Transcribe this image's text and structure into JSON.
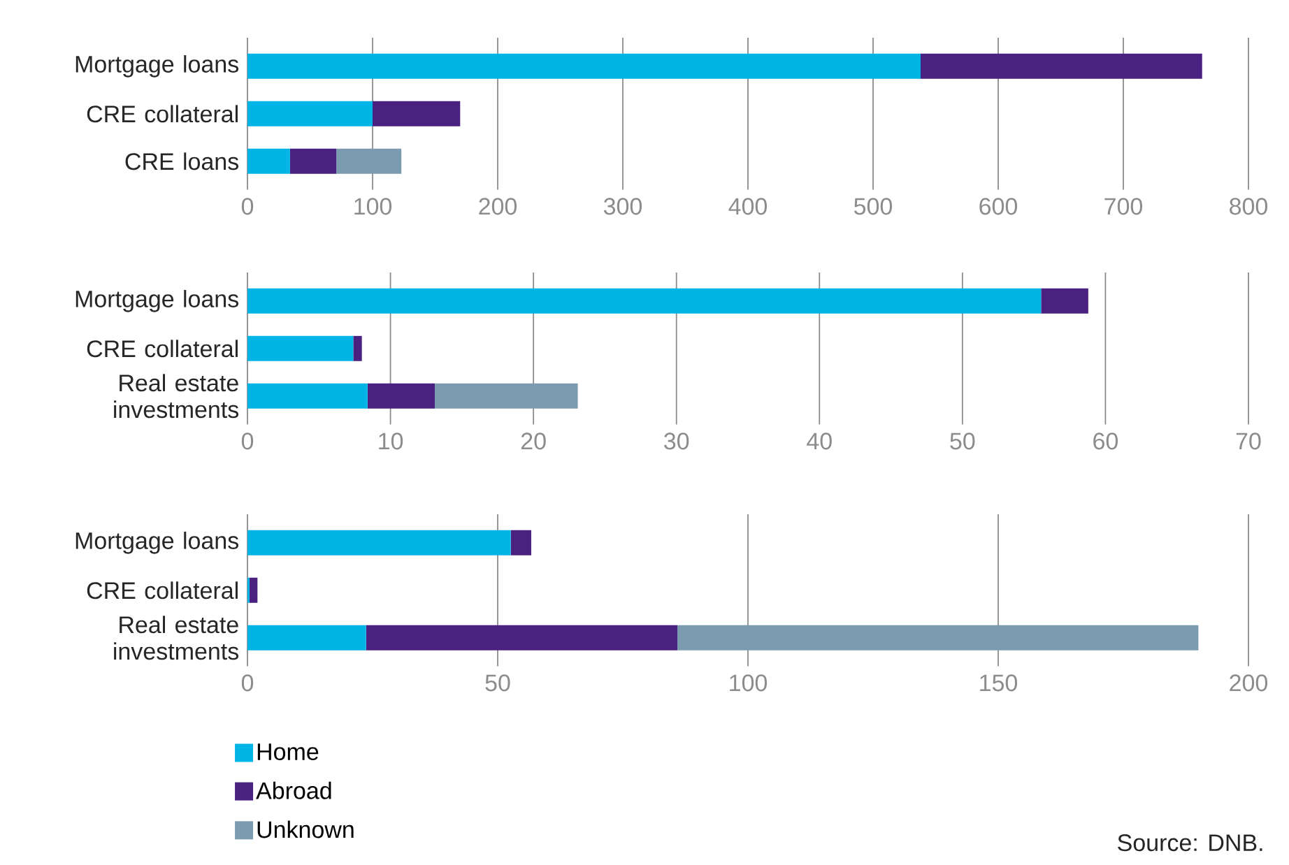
{
  "chart_data": [
    {
      "type": "bar",
      "orientation": "horizontal",
      "stacked": true,
      "grid": "x",
      "categories": [
        "Mortgage loans",
        "CRE collateral",
        "CRE loans"
      ],
      "xlim": [
        0,
        800
      ],
      "xticks": [
        0,
        100,
        200,
        300,
        400,
        500,
        600,
        700,
        800
      ],
      "series": [
        {
          "color": "#00b5e5",
          "values": [
            538,
            100,
            34
          ]
        },
        {
          "color": "#4a2180",
          "values": [
            225,
            70,
            37
          ]
        },
        {
          "color": "#7b9bb0",
          "values": [
            null,
            null,
            52
          ]
        }
      ]
    },
    {
      "type": "bar",
      "orientation": "horizontal",
      "stacked": true,
      "grid": "x",
      "categories": [
        "Mortgage loans",
        "CRE collateral",
        "Real estate investments"
      ],
      "xlim": [
        0,
        70
      ],
      "xticks": [
        0,
        10,
        20,
        30,
        40,
        50,
        60,
        70
      ],
      "series": [
        {
          "color": "#00b5e5",
          "values": [
            55.5,
            7.4,
            8.4
          ]
        },
        {
          "color": "#4a2180",
          "values": [
            3.3,
            0.6,
            4.7
          ]
        },
        {
          "color": "#7b9bb0",
          "values": [
            null,
            null,
            10
          ]
        }
      ]
    },
    {
      "type": "bar",
      "orientation": "horizontal",
      "stacked": true,
      "grid": "x",
      "legend": "bottom left",
      "categories": [
        "Mortgage loans",
        "CRE collateral",
        "Real estate investments"
      ],
      "xlim": [
        0,
        200
      ],
      "xticks": [
        0,
        50,
        100,
        150,
        200
      ],
      "series": [
        {
          "name": "Home",
          "color": "#00b5e5",
          "values": [
            52.6,
            0.4,
            23.7
          ]
        },
        {
          "name": "Abroad",
          "color": "#4a2180",
          "values": [
            4.1,
            1.6,
            62.2
          ]
        },
        {
          "name": "Unknown",
          "color": "#7b9bb0",
          "values": [
            null,
            null,
            104.1
          ]
        }
      ],
      "annotations": [
        "Source: DNB."
      ]
    }
  ]
}
